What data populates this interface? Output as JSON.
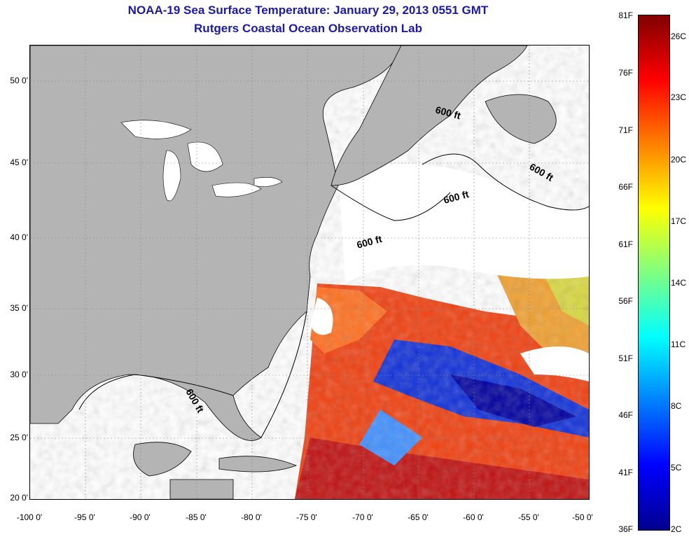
{
  "title_line1": "NOAA-19 Sea Surface Temperature:  January 29, 2013 0551 GMT",
  "title_line2": "Rutgers Coastal Ocean Observation Lab",
  "lat_labels": [
    "50 0'",
    "45 0'",
    "40 0'",
    "35 0'",
    "30 0'",
    "25 0'",
    "20 0'"
  ],
  "lon_labels": [
    "-100 0'",
    "-95 0'",
    "-90 0'",
    "-85 0'",
    "-80 0'",
    "-75 0'",
    "-70 0'",
    "-65 0'",
    "-60 0'",
    "-55 0'",
    "-50 0'"
  ],
  "contour_labels": [
    "600 ft",
    "600 ft",
    "600 ft",
    "600 ft",
    "600 ft"
  ],
  "colorbar_f": [
    "81F",
    "76F",
    "71F",
    "66F",
    "61F",
    "56F",
    "51F",
    "46F",
    "41F",
    "36F"
  ],
  "colorbar_c": [
    "26C",
    "23C",
    "20C",
    "17C",
    "14C",
    "11C",
    "8C",
    "5C",
    "2C"
  ],
  "colors": {
    "land": "#b4b4b4",
    "title": "#1a1aa6",
    "cloud": "#ffffff"
  }
}
